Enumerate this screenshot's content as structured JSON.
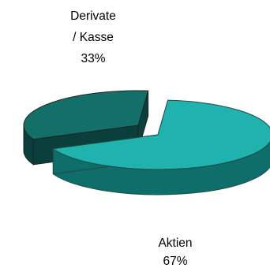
{
  "chart_data": {
    "type": "pie",
    "style": "3d-exploded",
    "title": "",
    "slices": [
      {
        "label_lines": [
          "Aktien"
        ],
        "percent_label": "67%",
        "value": 67,
        "top_color": "#20b2ac",
        "side_color": "#0e6e6a",
        "edge_color": "#1f4a48"
      },
      {
        "label_lines": [
          "Derivate",
          "/ Kasse"
        ],
        "percent_label": "33%",
        "value": 33,
        "top_color": "#137068",
        "side_color": "#0b3f3c",
        "edge_color": "#222222"
      }
    ],
    "legend": "none"
  }
}
